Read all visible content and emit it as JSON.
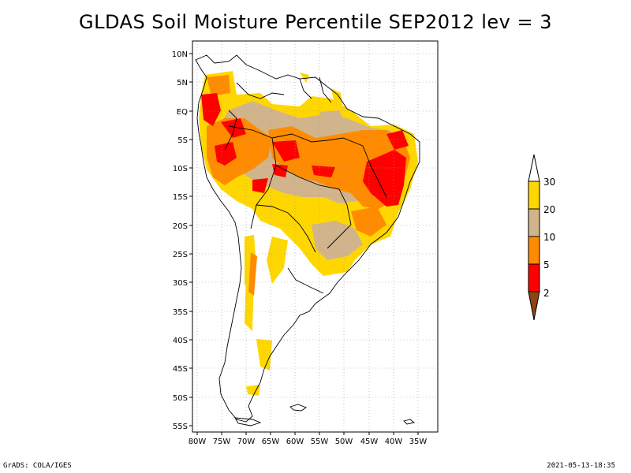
{
  "title": "GLDAS Soil Moisture Percentile SEP2012 lev = 3",
  "footer_left": "GrADS: COLA/IGES",
  "footer_right": "2021-05-13-18:35",
  "lat_labels": [
    "10N",
    "5N",
    "EQ",
    "5S",
    "10S",
    "15S",
    "20S",
    "25S",
    "30S",
    "35S",
    "40S",
    "45S",
    "50S",
    "55S"
  ],
  "lon_labels": [
    "80W",
    "75W",
    "70W",
    "65W",
    "60W",
    "55W",
    "50W",
    "45W",
    "40W",
    "35W"
  ],
  "legend": {
    "labels": [
      "30",
      "20",
      "10",
      "5",
      "2"
    ],
    "colors": {
      "lt2": "#8b4513",
      "2to5": "#ff0000",
      "5to10": "#ff8c00",
      "10to20": "#d2b48c",
      "20to30": "#ffd700",
      "gt30": "#ffffff"
    }
  }
}
